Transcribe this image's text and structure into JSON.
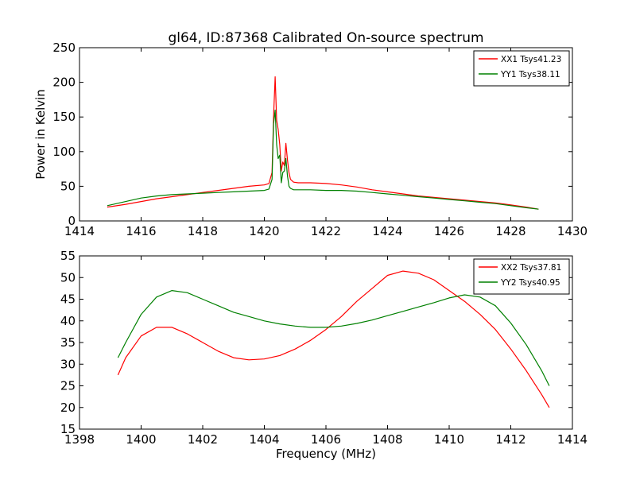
{
  "figure": {
    "title": "gl64, ID:87368 Calibrated On-source spectrum"
  },
  "chart_data": [
    {
      "type": "line",
      "xlim": [
        1414,
        1430
      ],
      "ylim": [
        0,
        250
      ],
      "xticks": [
        1414,
        1416,
        1418,
        1420,
        1422,
        1424,
        1426,
        1428,
        1430
      ],
      "yticks": [
        0,
        50,
        100,
        150,
        200,
        250
      ],
      "xticklabels": [
        "1414",
        "1416",
        "1418",
        "1420",
        "1422",
        "1424",
        "1426",
        "1428",
        "1430"
      ],
      "yticklabels": [
        "0",
        "50",
        "100",
        "150",
        "200",
        "250"
      ],
      "xlabel": "",
      "ylabel": "Power in Kelvin",
      "legend": "top-right",
      "grid": false,
      "series": [
        {
          "name": "XX1 Tsys41.23",
          "color": "#ff0000",
          "x": [
            1414.9,
            1415.5,
            1416.0,
            1416.5,
            1417.0,
            1417.5,
            1418.0,
            1418.5,
            1419.0,
            1419.5,
            1420.0,
            1420.15,
            1420.25,
            1420.3,
            1420.35,
            1420.4,
            1420.45,
            1420.5,
            1420.55,
            1420.6,
            1420.65,
            1420.7,
            1420.75,
            1420.8,
            1420.85,
            1420.95,
            1421.1,
            1421.5,
            1422.0,
            1422.5,
            1423.0,
            1423.5,
            1424.0,
            1424.5,
            1425.0,
            1425.5,
            1426.0,
            1426.5,
            1427.0,
            1427.5,
            1428.0,
            1428.5,
            1428.9
          ],
          "y": [
            20,
            24,
            28,
            32,
            35,
            38,
            41,
            44,
            47,
            50,
            52,
            54,
            70,
            150,
            208,
            145,
            132,
            110,
            72,
            85,
            80,
            112,
            88,
            70,
            60,
            56,
            55,
            55,
            54,
            52,
            49,
            45,
            42,
            39,
            36,
            34,
            32,
            30,
            28,
            26,
            23,
            20,
            17
          ]
        },
        {
          "name": "YY1 Tsys38.11",
          "color": "#008000",
          "x": [
            1414.9,
            1415.5,
            1416.0,
            1416.5,
            1417.0,
            1417.5,
            1418.0,
            1418.5,
            1419.0,
            1419.5,
            1420.0,
            1420.15,
            1420.25,
            1420.3,
            1420.35,
            1420.4,
            1420.45,
            1420.5,
            1420.55,
            1420.6,
            1420.65,
            1420.7,
            1420.75,
            1420.8,
            1420.85,
            1420.95,
            1421.1,
            1421.5,
            1422.0,
            1422.5,
            1423.0,
            1423.5,
            1424.0,
            1424.5,
            1425.0,
            1425.5,
            1426.0,
            1426.5,
            1427.0,
            1427.5,
            1428.0,
            1428.5,
            1428.9
          ],
          "y": [
            22,
            28,
            33,
            36,
            38,
            39,
            40,
            41,
            42,
            43,
            44,
            46,
            60,
            140,
            160,
            110,
            90,
            95,
            55,
            70,
            72,
            90,
            65,
            50,
            47,
            45,
            45,
            45,
            44,
            44,
            43,
            41,
            39,
            37,
            35,
            33,
            31,
            29,
            27,
            25,
            22,
            19,
            17
          ]
        }
      ]
    },
    {
      "type": "line",
      "xlim": [
        1398,
        1414
      ],
      "ylim": [
        15,
        55
      ],
      "xticks": [
        1398,
        1400,
        1402,
        1404,
        1406,
        1408,
        1410,
        1412,
        1414
      ],
      "yticks": [
        15,
        20,
        25,
        30,
        35,
        40,
        45,
        50,
        55
      ],
      "xticklabels": [
        "1398",
        "1400",
        "1402",
        "1404",
        "1406",
        "1408",
        "1410",
        "1412",
        "1414"
      ],
      "yticklabels": [
        "15",
        "20",
        "25",
        "30",
        "35",
        "40",
        "45",
        "50",
        "55"
      ],
      "xlabel": "Frequency (MHz)",
      "ylabel": "",
      "legend": "top-right",
      "grid": false,
      "series": [
        {
          "name": "XX2 Tsys37.81",
          "color": "#ff0000",
          "x": [
            1399.25,
            1399.5,
            1400.0,
            1400.5,
            1401.0,
            1401.5,
            1402.0,
            1402.5,
            1403.0,
            1403.5,
            1404.0,
            1404.5,
            1405.0,
            1405.5,
            1406.0,
            1406.5,
            1407.0,
            1407.5,
            1408.0,
            1408.5,
            1409.0,
            1409.5,
            1410.0,
            1410.5,
            1411.0,
            1411.5,
            1412.0,
            1412.5,
            1413.0,
            1413.25
          ],
          "y": [
            27.5,
            31.5,
            36.5,
            38.5,
            38.5,
            37,
            35,
            33,
            31.5,
            31,
            31.2,
            32,
            33.5,
            35.5,
            38,
            41,
            44.5,
            47.5,
            50.5,
            51.5,
            51,
            49.5,
            47,
            44.5,
            41.5,
            38,
            33.5,
            28.5,
            23,
            20
          ]
        },
        {
          "name": "YY2 Tsys40.95",
          "color": "#008000",
          "x": [
            1399.25,
            1399.5,
            1400.0,
            1400.5,
            1401.0,
            1401.5,
            1402.0,
            1402.5,
            1403.0,
            1403.5,
            1404.0,
            1404.5,
            1405.0,
            1405.5,
            1406.0,
            1406.5,
            1407.0,
            1407.5,
            1408.0,
            1408.5,
            1409.0,
            1409.5,
            1410.0,
            1410.5,
            1411.0,
            1411.5,
            1412.0,
            1412.5,
            1413.0,
            1413.25
          ],
          "y": [
            31.5,
            35,
            41.5,
            45.5,
            47,
            46.5,
            45,
            43.5,
            42,
            41,
            40,
            39.3,
            38.8,
            38.5,
            38.5,
            38.8,
            39.4,
            40.2,
            41.2,
            42.2,
            43.2,
            44.2,
            45.3,
            46,
            45.5,
            43.5,
            39.5,
            34.5,
            28.5,
            25
          ]
        }
      ]
    }
  ]
}
